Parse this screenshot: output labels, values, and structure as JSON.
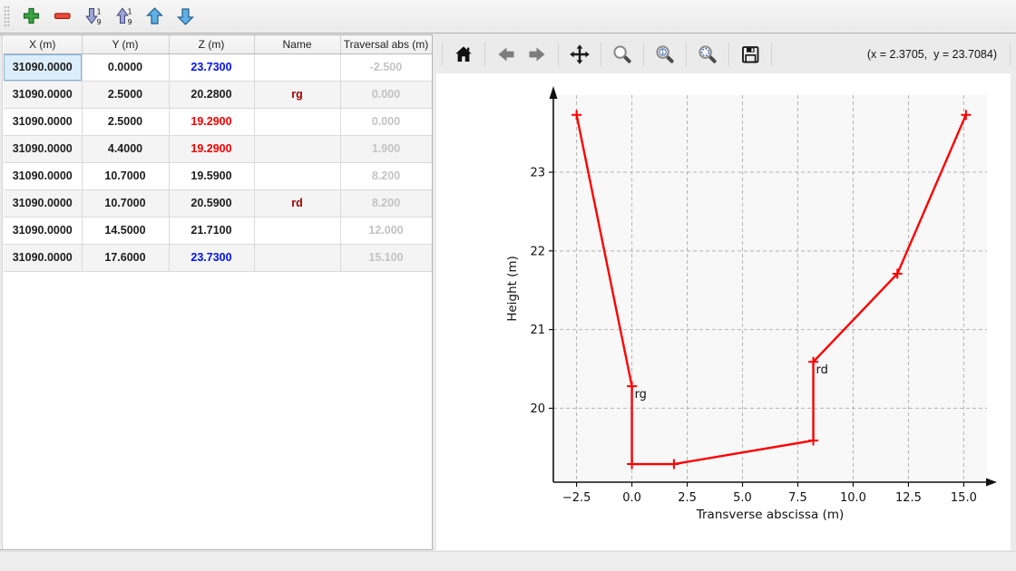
{
  "table_toolbar": {
    "buttons": [
      {
        "name": "add-point-button",
        "icon": "plus-icon"
      },
      {
        "name": "remove-point-button",
        "icon": "minus-icon"
      },
      {
        "name": "sort-descending-button",
        "icon": "sort-descending-icon"
      },
      {
        "name": "sort-ascending-button",
        "icon": "sort-ascending-icon"
      },
      {
        "name": "move-point-up-button",
        "icon": "arrow-up-icon"
      },
      {
        "name": "move-point-down-button",
        "icon": "arrow-down-icon"
      }
    ]
  },
  "table": {
    "columns": [
      "X (m)",
      "Y (m)",
      "Z (m)",
      "Name",
      "Traversal abs (m)"
    ],
    "rows": [
      {
        "x": "31090.0000",
        "y": "0.0000",
        "z": "23.7300",
        "z_style": "blue",
        "name": "",
        "abs": "-2.500"
      },
      {
        "x": "31090.0000",
        "y": "2.5000",
        "z": "20.2800",
        "z_style": "black",
        "name": "rg",
        "abs": "0.000"
      },
      {
        "x": "31090.0000",
        "y": "2.5000",
        "z": "19.2900",
        "z_style": "red",
        "name": "",
        "abs": "0.000"
      },
      {
        "x": "31090.0000",
        "y": "4.4000",
        "z": "19.2900",
        "z_style": "red",
        "name": "",
        "abs": "1.900"
      },
      {
        "x": "31090.0000",
        "y": "10.7000",
        "z": "19.5900",
        "z_style": "black",
        "name": "",
        "abs": "8.200"
      },
      {
        "x": "31090.0000",
        "y": "10.7000",
        "z": "20.5900",
        "z_style": "black",
        "name": "rd",
        "abs": "8.200"
      },
      {
        "x": "31090.0000",
        "y": "14.5000",
        "z": "21.7100",
        "z_style": "black",
        "name": "",
        "abs": "12.000"
      },
      {
        "x": "31090.0000",
        "y": "17.6000",
        "z": "23.7300",
        "z_style": "blue",
        "name": "",
        "abs": "15.100"
      }
    ],
    "selected": {
      "row": 0,
      "col": "x"
    }
  },
  "plot_toolbar": {
    "buttons": [
      "home",
      "back",
      "forward",
      "pan",
      "zoom",
      "zoom-1-1",
      "zoom-selection",
      "save"
    ],
    "coords_readout": "(x = 2.3705,  y = 23.7084)"
  },
  "chart_data": {
    "type": "line",
    "title": "",
    "xlabel": "Transverse abscissa (m)",
    "ylabel": "Height (m)",
    "series": [
      {
        "name": "cross-section-profile",
        "color": "#ff0000",
        "marker": "+",
        "x": [
          -2.5,
          0.0,
          0.0,
          1.9,
          8.2,
          8.2,
          12.0,
          15.1
        ],
        "y": [
          23.73,
          20.28,
          19.29,
          19.29,
          19.59,
          20.59,
          21.71,
          23.73
        ]
      }
    ],
    "point_labels": [
      {
        "text": "rg",
        "x": 0.0,
        "y": 20.28
      },
      {
        "text": "rd",
        "x": 8.2,
        "y": 20.59
      }
    ],
    "xticks": {
      "values": [
        -2.5,
        0,
        2.5,
        5,
        7.5,
        10,
        12.5,
        15
      ],
      "labels": [
        "−2.5",
        "0.0",
        "2.5",
        "5.0",
        "7.5",
        "10.0",
        "12.5",
        "15.0"
      ]
    },
    "yticks": {
      "values": [
        20,
        21,
        22,
        23
      ],
      "labels": [
        "20",
        "21",
        "22",
        "23"
      ]
    },
    "xlim": [
      -3.55,
      16.05
    ],
    "ylim": [
      19.06,
      23.98
    ],
    "grid": true,
    "legend_position": "none",
    "plot_bg": "#f8f8f8",
    "grid_color": "#b3b3b3"
  }
}
